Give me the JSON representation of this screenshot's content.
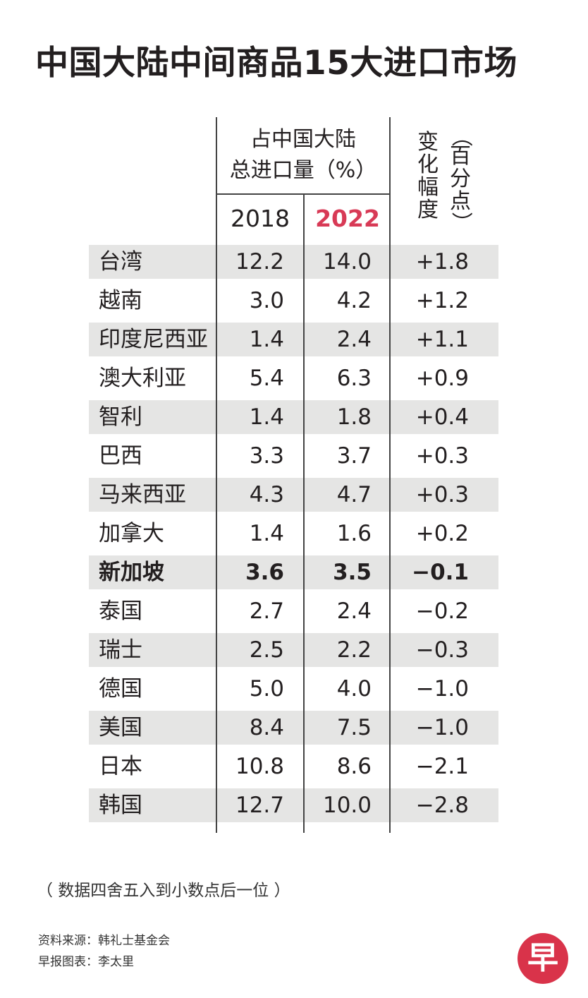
{
  "title": "中国大陆中间商品15大进口市场",
  "header": {
    "share_line1": "占中国大陆",
    "share_line2": "总进口量（%）",
    "year_a": "2018",
    "year_b": "2022",
    "change_label": "变化幅度",
    "change_unit": "（百分点）"
  },
  "colors": {
    "highlight_year": "#d83a56",
    "row_shade": "#e5e5e4",
    "logo": "#d9334a"
  },
  "chart_data": {
    "type": "table",
    "title": "中国大陆中间商品15大进口市场",
    "columns": [
      "2018",
      "2022",
      "变化幅度（百分点）"
    ],
    "rows": [
      {
        "name": "台湾",
        "v2018": "12.2",
        "v2022": "14.0",
        "change": "+1.8"
      },
      {
        "name": "越南",
        "v2018": "3.0",
        "v2022": "4.2",
        "change": "+1.2"
      },
      {
        "name": "印度尼西亚",
        "v2018": "1.4",
        "v2022": "2.4",
        "change": "+1.1"
      },
      {
        "name": "澳大利亚",
        "v2018": "5.4",
        "v2022": "6.3",
        "change": "+0.9"
      },
      {
        "name": "智利",
        "v2018": "1.4",
        "v2022": "1.8",
        "change": "+0.4"
      },
      {
        "name": "巴西",
        "v2018": "3.3",
        "v2022": "3.7",
        "change": "+0.3"
      },
      {
        "name": "马来西亚",
        "v2018": "4.3",
        "v2022": "4.7",
        "change": "+0.3"
      },
      {
        "name": "加拿大",
        "v2018": "1.4",
        "v2022": "1.6",
        "change": "+0.2"
      },
      {
        "name": "新加坡",
        "v2018": "3.6",
        "v2022": "3.5",
        "change": "−0.1",
        "bold": true
      },
      {
        "name": "泰国",
        "v2018": "2.7",
        "v2022": "2.4",
        "change": "−0.2"
      },
      {
        "name": "瑞士",
        "v2018": "2.5",
        "v2022": "2.2",
        "change": "−0.3"
      },
      {
        "name": "德国",
        "v2018": "5.0",
        "v2022": "4.0",
        "change": "−1.0"
      },
      {
        "name": "美国",
        "v2018": "8.4",
        "v2022": "7.5",
        "change": "−1.0"
      },
      {
        "name": "日本",
        "v2018": "10.8",
        "v2022": "8.6",
        "change": "−2.1"
      },
      {
        "name": "韩国",
        "v2018": "12.7",
        "v2022": "10.0",
        "change": "−2.8"
      }
    ]
  },
  "footnote": "（ 数据四舍五入到小数点后一位 ）",
  "source": "资料来源：韩礼士基金会",
  "credit": "早报图表：李太里",
  "logo_char": "早"
}
